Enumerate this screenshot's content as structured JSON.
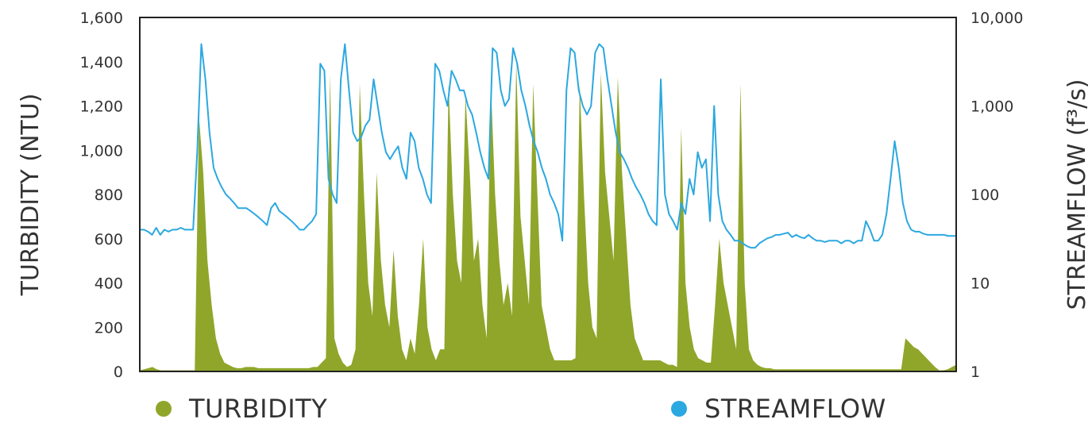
{
  "chart_data": {
    "type": "area",
    "y_left": {
      "label": "TURBIDITY (NTU)",
      "ylim": [
        0,
        1600
      ],
      "ticks": [
        "0",
        "200",
        "400",
        "600",
        "800",
        "1,000",
        "1,200",
        "1,400",
        "1,600"
      ]
    },
    "y_right": {
      "label": "STREAMFLOW (f³/s)",
      "scale": "log",
      "ylim": [
        1,
        10000
      ],
      "ticks": [
        "1",
        "10",
        "100",
        "1,000",
        "10,000"
      ]
    },
    "grid": false,
    "legend_position": "bottom",
    "series": [
      {
        "name": "TURBIDITY",
        "axis": "left",
        "type": "area",
        "color": "#8fa62a",
        "values": [
          5,
          10,
          15,
          20,
          10,
          5,
          5,
          5,
          5,
          5,
          5,
          5,
          5,
          5,
          1150,
          900,
          500,
          300,
          150,
          80,
          40,
          30,
          20,
          15,
          15,
          20,
          20,
          20,
          15,
          15,
          15,
          15,
          15,
          15,
          15,
          15,
          15,
          15,
          15,
          15,
          15,
          20,
          20,
          40,
          60,
          1340,
          150,
          80,
          40,
          20,
          30,
          100,
          1300,
          800,
          400,
          250,
          900,
          500,
          300,
          200,
          550,
          250,
          100,
          50,
          150,
          80,
          300,
          600,
          200,
          100,
          50,
          100,
          100,
          1300,
          800,
          500,
          400,
          1250,
          900,
          500,
          600,
          300,
          150,
          1300,
          800,
          500,
          300,
          400,
          250,
          1400,
          700,
          500,
          300,
          1300,
          800,
          300,
          200,
          100,
          50,
          50,
          50,
          50,
          50,
          60,
          1300,
          800,
          400,
          200,
          150,
          1350,
          900,
          700,
          500,
          1330,
          900,
          600,
          300,
          150,
          100,
          50,
          50,
          50,
          50,
          50,
          40,
          30,
          30,
          20,
          1100,
          400,
          200,
          100,
          60,
          50,
          40,
          40,
          300,
          600,
          400,
          300,
          200,
          100,
          1300,
          400,
          100,
          50,
          30,
          20,
          15,
          15,
          10,
          10,
          10,
          10,
          10,
          10,
          10,
          10,
          10,
          10,
          10,
          10,
          10,
          10,
          10,
          10,
          10,
          10,
          10,
          10,
          10,
          10,
          10,
          10,
          10,
          10,
          10,
          10,
          10,
          10,
          10,
          150,
          130,
          110,
          100,
          80,
          60,
          40,
          20,
          5,
          5,
          10,
          20,
          30
        ]
      },
      {
        "name": "STREAMFLOW",
        "axis": "right",
        "type": "line",
        "color": "#2ba8e0",
        "values": [
          40,
          40,
          38,
          35,
          42,
          35,
          40,
          38,
          40,
          40,
          42,
          40,
          40,
          40,
          300,
          5000,
          2000,
          500,
          200,
          150,
          120,
          100,
          90,
          80,
          70,
          70,
          70,
          65,
          60,
          55,
          50,
          45,
          70,
          80,
          65,
          60,
          55,
          50,
          45,
          40,
          40,
          45,
          50,
          60,
          3000,
          2500,
          150,
          100,
          80,
          2000,
          5000,
          1500,
          500,
          400,
          450,
          600,
          700,
          2000,
          1000,
          500,
          300,
          250,
          300,
          350,
          200,
          150,
          500,
          400,
          200,
          150,
          100,
          80,
          3000,
          2500,
          1500,
          1000,
          2500,
          2000,
          1500,
          1500,
          1000,
          800,
          500,
          300,
          200,
          150,
          4500,
          4000,
          1500,
          1000,
          1200,
          4500,
          3000,
          1500,
          1000,
          600,
          400,
          300,
          200,
          150,
          100,
          80,
          60,
          30,
          1500,
          4500,
          4000,
          1500,
          1000,
          800,
          1000,
          4000,
          5000,
          4500,
          2000,
          1000,
          500,
          300,
          250,
          200,
          150,
          120,
          100,
          80,
          60,
          50,
          45,
          2000,
          100,
          60,
          50,
          40,
          80,
          60,
          150,
          100,
          300,
          200,
          250,
          50,
          1000,
          100,
          50,
          40,
          35,
          30,
          30,
          28,
          26,
          25,
          25,
          28,
          30,
          32,
          33,
          35,
          35,
          36,
          37,
          33,
          35,
          33,
          32,
          35,
          32,
          30,
          30,
          29,
          30,
          30,
          30,
          28,
          30,
          30,
          28,
          30,
          30,
          50,
          40,
          30,
          30,
          35,
          60,
          150,
          400,
          200,
          80,
          50,
          40,
          38,
          38,
          36,
          35,
          35,
          35,
          35,
          35,
          34,
          34,
          34
        ]
      }
    ]
  }
}
